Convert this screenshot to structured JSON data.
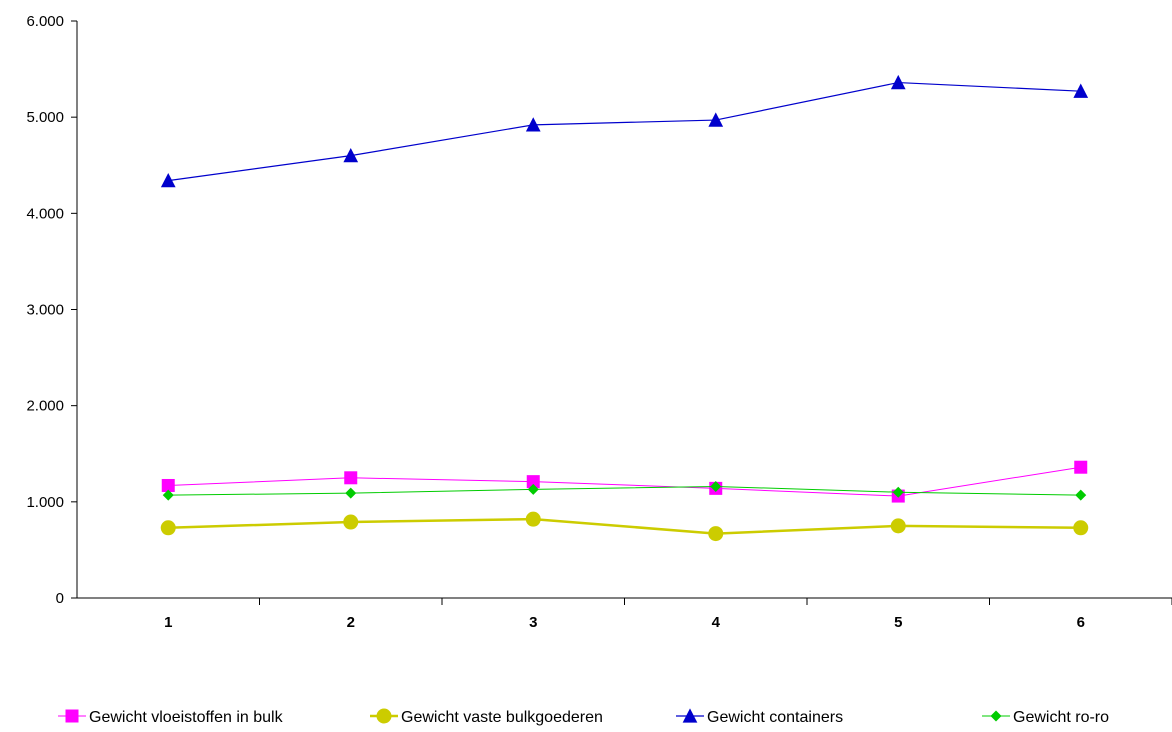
{
  "chart_data": {
    "type": "line",
    "categories": [
      "1",
      "2",
      "3",
      "4",
      "5",
      "6"
    ],
    "ylim": [
      0,
      6000
    ],
    "yticks": [
      0,
      1000,
      2000,
      3000,
      4000,
      5000,
      6000
    ],
    "ytick_labels": [
      "0",
      "1.000",
      "2.000",
      "3.000",
      "4.000",
      "5.000",
      "6.000"
    ],
    "grid": false,
    "legend_position": "bottom",
    "series": [
      {
        "name": "Gewicht vloeistoffen in bulk",
        "color": "#ff00ff",
        "marker": "square",
        "values": [
          1170,
          1250,
          1210,
          1140,
          1060,
          1360
        ]
      },
      {
        "name": "Gewicht vaste bulkgoederen",
        "color": "#cccc00",
        "marker": "circle",
        "values": [
          730,
          790,
          820,
          670,
          750,
          730
        ]
      },
      {
        "name": "Gewicht containers",
        "color": "#0000cc",
        "marker": "triangle",
        "values": [
          4340,
          4600,
          4920,
          4970,
          5360,
          5270
        ]
      },
      {
        "name": "Gewicht ro-ro",
        "color": "#00cc00",
        "marker": "diamond",
        "values": [
          1070,
          1090,
          1130,
          1160,
          1100,
          1070
        ]
      }
    ]
  }
}
